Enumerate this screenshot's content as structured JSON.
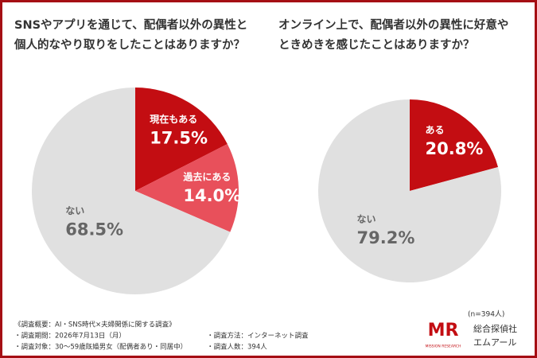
{
  "chart_data": [
    {
      "type": "pie",
      "title": [
        "SNSやアプリを通じて、配偶者以外の異性と",
        "個人的なやり取りをしたことはありますか？"
      ],
      "categories": [
        "現在もある",
        "過去にある",
        "ない"
      ],
      "values": [
        17.5,
        14.0,
        68.5
      ],
      "value_labels": [
        "17.5%",
        "14.0%",
        "68.5%"
      ],
      "colors": [
        "#c30d12",
        "#e8505b",
        "#e0e0e0"
      ]
    },
    {
      "type": "pie",
      "title": [
        "オンライン上で、配偶者以外の異性に好意や",
        "ときめきを感じたことはありますか？"
      ],
      "categories": [
        "ある",
        "ない"
      ],
      "values": [
        20.8,
        79.2
      ],
      "value_labels": [
        "20.8%",
        "79.2%"
      ],
      "colors": [
        "#c30d12",
        "#e0e0e0"
      ]
    }
  ],
  "sample": "(n=394人)",
  "notes": [
    "《調査概要：AI・SNS時代×夫婦関係に関する調査》",
    "・調査期間：2026年7月13日（月）",
    "・調査対象：30〜59歳既婚男女（配偶者あり・同居中）",
    "・調査方法：インターネット調査",
    "・調査人数：394人"
  ],
  "brand": {
    "logo": "MR",
    "sub": "MISSION RESEARCH",
    "name1": "総合探偵社",
    "name2": "エムアール"
  }
}
